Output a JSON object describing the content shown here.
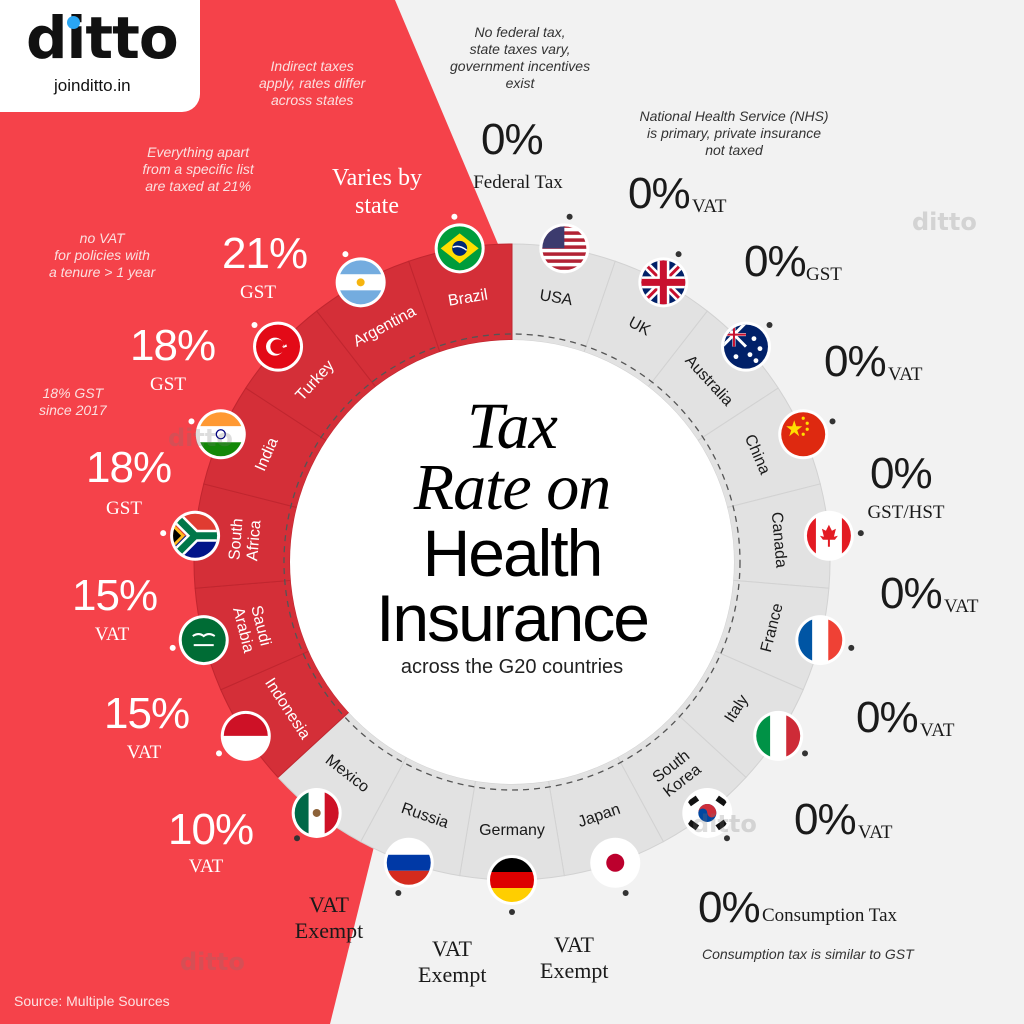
{
  "brand": {
    "name": "ditto",
    "url": "joinditto.in",
    "accent": "#2aa6f3",
    "watermark": "ditto"
  },
  "title": {
    "line1": "Tax",
    "line2": "Rate on",
    "line3": "Health",
    "line4": "Insurance",
    "subtitle": "across the G20 countries"
  },
  "source": "Source: Multiple Sources",
  "colors": {
    "taxed": "#f5424a",
    "untaxed": "#f2f2f2",
    "ring_taxed": "#d42f38",
    "ring_untaxed": "#e2e2e2"
  },
  "countries": [
    {
      "id": "usa",
      "name": "USA",
      "rate": "0%",
      "suffix": "Federal Tax",
      "note": "No federal tax,\nstate taxes vary,\ngovernment incentives\nexist",
      "taxed": false,
      "flag": "flag-usa"
    },
    {
      "id": "uk",
      "name": "UK",
      "rate": "0%",
      "suffix": "VAT",
      "note": "National Health Service (NHS)\nis primary, private insurance\nnot taxed",
      "taxed": false,
      "flag": "flag-uk"
    },
    {
      "id": "australia",
      "name": "Australia",
      "rate": "0%",
      "suffix": "GST",
      "note": "",
      "taxed": false,
      "flag": "flag-australia"
    },
    {
      "id": "china",
      "name": "China",
      "rate": "0%",
      "suffix": "VAT",
      "note": "",
      "taxed": false,
      "flag": "flag-china"
    },
    {
      "id": "canada",
      "name": "Canada",
      "rate": "0%",
      "suffix": "GST/HST",
      "note": "",
      "taxed": false,
      "flag": "flag-canada"
    },
    {
      "id": "france",
      "name": "France",
      "rate": "0%",
      "suffix": "VAT",
      "note": "",
      "taxed": false,
      "flag": "flag-france"
    },
    {
      "id": "italy",
      "name": "Italy",
      "rate": "0%",
      "suffix": "VAT",
      "note": "",
      "taxed": false,
      "flag": "flag-italy"
    },
    {
      "id": "southkorea",
      "name": "South\nKorea",
      "rate": "0%",
      "suffix": "VAT",
      "note": "",
      "taxed": false,
      "flag": "flag-south-korea"
    },
    {
      "id": "japan",
      "name": "Japan",
      "rate": "0%",
      "suffix": "Consumption Tax",
      "note": "Consumption tax is similar to GST",
      "taxed": false,
      "flag": "flag-japan"
    },
    {
      "id": "germany",
      "name": "Germany",
      "rate": "",
      "suffix": "VAT\nExempt",
      "note": "",
      "taxed": false,
      "flag": "flag-germany"
    },
    {
      "id": "russia",
      "name": "Russia",
      "rate": "",
      "suffix": "VAT\nExempt",
      "note": "",
      "taxed": false,
      "flag": "flag-russia"
    },
    {
      "id": "mexico",
      "name": "Mexico",
      "rate": "",
      "suffix": "VAT\nExempt",
      "note": "",
      "taxed": false,
      "flag": "flag-mexico"
    },
    {
      "id": "indonesia",
      "name": "Indonesia",
      "rate": "10%",
      "suffix": "VAT",
      "note": "",
      "taxed": true,
      "flag": "flag-indonesia"
    },
    {
      "id": "saudiarabia",
      "name": "Saudi\nArabia",
      "rate": "15%",
      "suffix": "VAT",
      "note": "",
      "taxed": true,
      "flag": "flag-saudi-arabia"
    },
    {
      "id": "southafrica",
      "name": "South\nAfrica",
      "rate": "15%",
      "suffix": "VAT",
      "note": "",
      "taxed": true,
      "flag": "flag-south-africa"
    },
    {
      "id": "india",
      "name": "India",
      "rate": "18%",
      "suffix": "GST",
      "note": "18% GST\nsince 2017",
      "taxed": true,
      "flag": "flag-india"
    },
    {
      "id": "turkey",
      "name": "Turkey",
      "rate": "18%",
      "suffix": "GST",
      "note": "no VAT\nfor policies with\na tenure > 1 year",
      "taxed": true,
      "flag": "flag-turkey"
    },
    {
      "id": "argentina",
      "name": "Argentina",
      "rate": "21%",
      "suffix": "GST",
      "note": "Everything apart\nfrom a specific list\nare taxed at 21%",
      "taxed": true,
      "flag": "flag-argentina"
    },
    {
      "id": "brazil",
      "name": "Brazil",
      "rate": "",
      "suffix": "Varies by\nstate",
      "note": "Indirect taxes\napply, rates differ\nacross states",
      "taxed": true,
      "flag": "flag-brazil"
    }
  ]
}
